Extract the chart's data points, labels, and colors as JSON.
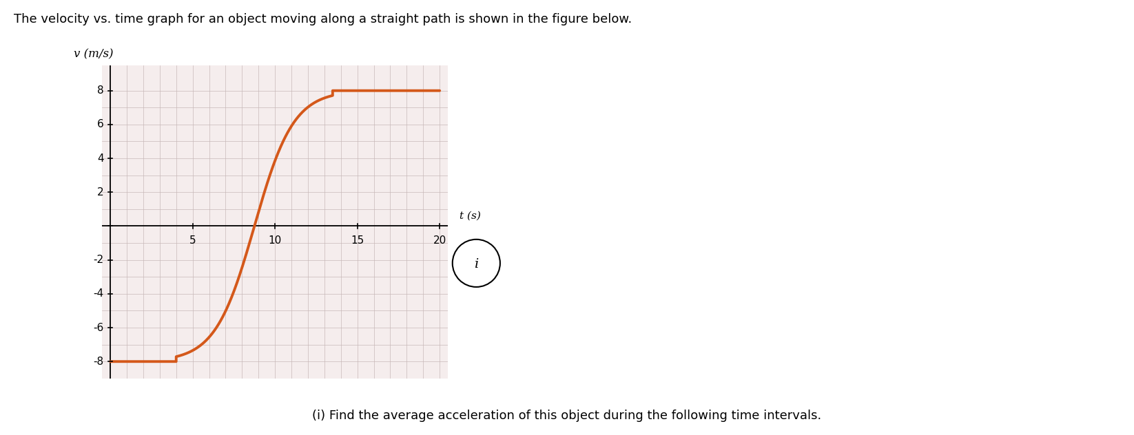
{
  "title": "The velocity vs. time graph for an object moving along a straight path is shown in the figure below.",
  "ylabel": "v (m/s)",
  "xlabel": "t (s)",
  "subtitle": "(i) Find the average acceleration of this object during the following time intervals.",
  "line_color": "#D4581A",
  "line_width": 2.8,
  "background_color": "#ffffff",
  "grid_color": "#c8b8b8",
  "grid_bg_color": "#f5eded",
  "xlim": [
    -0.5,
    20.5
  ],
  "ylim": [
    -9.0,
    9.5
  ],
  "xticks": [
    5,
    10,
    15,
    20
  ],
  "yticks": [
    -8,
    -6,
    -4,
    -2,
    0,
    2,
    4,
    6,
    8
  ],
  "flat_start_t": 4.0,
  "flat_end_t": 13.5,
  "v_low": -8,
  "v_high": 8,
  "t_max": 20,
  "t_min": 0
}
